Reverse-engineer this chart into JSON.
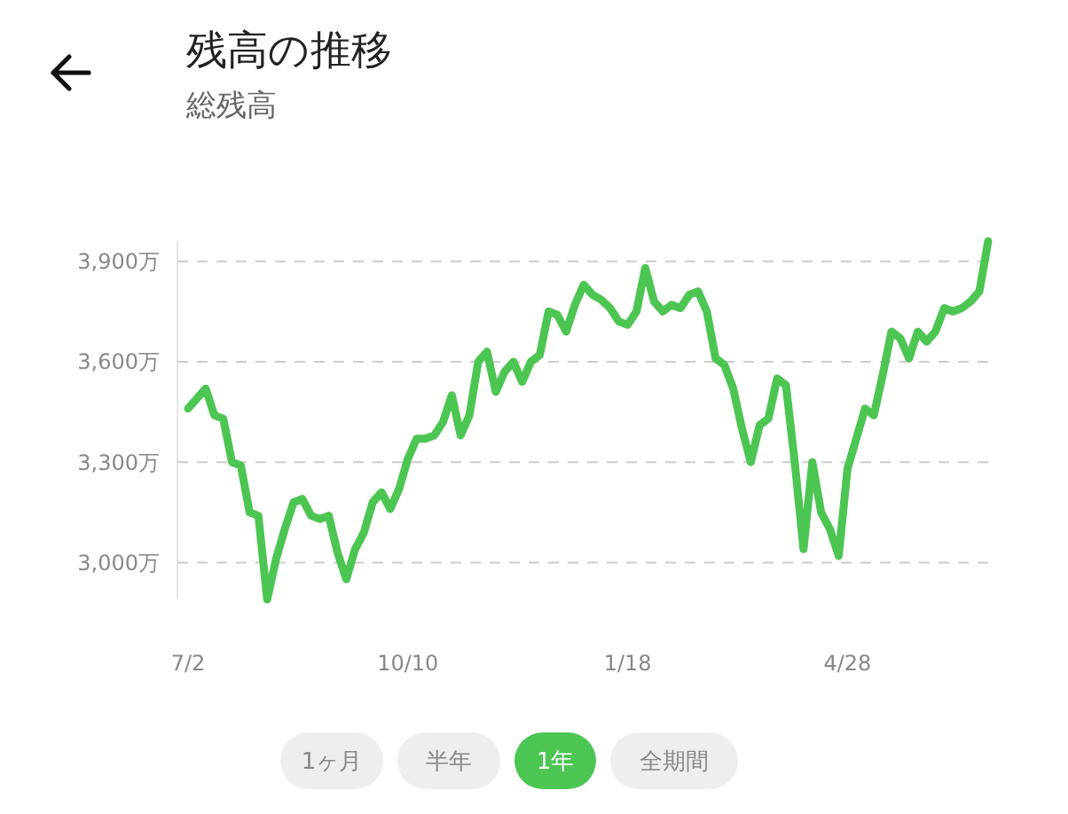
{
  "chart_data": {
    "type": "line",
    "title": "残高の推移",
    "subtitle": "総残高",
    "categories": [
      "7/2",
      null,
      null,
      null,
      null,
      null,
      null,
      null,
      null,
      null,
      null,
      null,
      null,
      null,
      null,
      null,
      null,
      null,
      null,
      null,
      null,
      null,
      null,
      null,
      null,
      "10/10",
      null,
      null,
      null,
      null,
      null,
      null,
      null,
      null,
      null,
      null,
      null,
      null,
      null,
      null,
      null,
      null,
      null,
      null,
      null,
      null,
      null,
      null,
      null,
      null,
      "1/18",
      null,
      null,
      null,
      null,
      null,
      null,
      null,
      null,
      null,
      null,
      null,
      null,
      null,
      null,
      null,
      null,
      null,
      null,
      null,
      null,
      null,
      null,
      null,
      null,
      "4/28",
      null,
      null,
      null,
      null,
      null,
      null,
      null,
      null,
      null,
      null,
      null,
      null,
      null,
      null,
      null,
      null
    ],
    "series": [
      {
        "color": "#4cc552",
        "values": [
          3460,
          3490,
          3520,
          3440,
          3430,
          3300,
          3290,
          3150,
          3140,
          2890,
          3010,
          3100,
          3180,
          3190,
          3140,
          3130,
          3140,
          3030,
          2950,
          3040,
          3090,
          3180,
          3210,
          3160,
          3220,
          3310,
          3370,
          3370,
          3380,
          3420,
          3500,
          3380,
          3440,
          3600,
          3630,
          3510,
          3570,
          3600,
          3540,
          3600,
          3620,
          3750,
          3740,
          3690,
          3770,
          3830,
          3800,
          3785,
          3760,
          3720,
          3710,
          3750,
          3880,
          3780,
          3750,
          3770,
          3760,
          3800,
          3810,
          3750,
          3610,
          3590,
          3520,
          3400,
          3300,
          3410,
          3430,
          3550,
          3530,
          3300,
          3040,
          3300,
          3150,
          3100,
          3020,
          3280,
          3370,
          3460,
          3440,
          3560,
          3690,
          3670,
          3610,
          3690,
          3660,
          3690,
          3760,
          3750,
          3760,
          3780,
          3810,
          3960
        ]
      }
    ],
    "ylim": [
      2890,
      3960
    ],
    "yticks": [
      {
        "value": 3000,
        "label": "3,000万"
      },
      {
        "value": 3300,
        "label": "3,300万"
      },
      {
        "value": 3600,
        "label": "3,600万"
      },
      {
        "value": 3900,
        "label": "3,900万"
      }
    ],
    "grid": "y",
    "line_style": "solid",
    "marker": "none",
    "annotations": [
      "1ヶ月",
      "半年",
      "1年",
      "全期間"
    ]
  }
}
